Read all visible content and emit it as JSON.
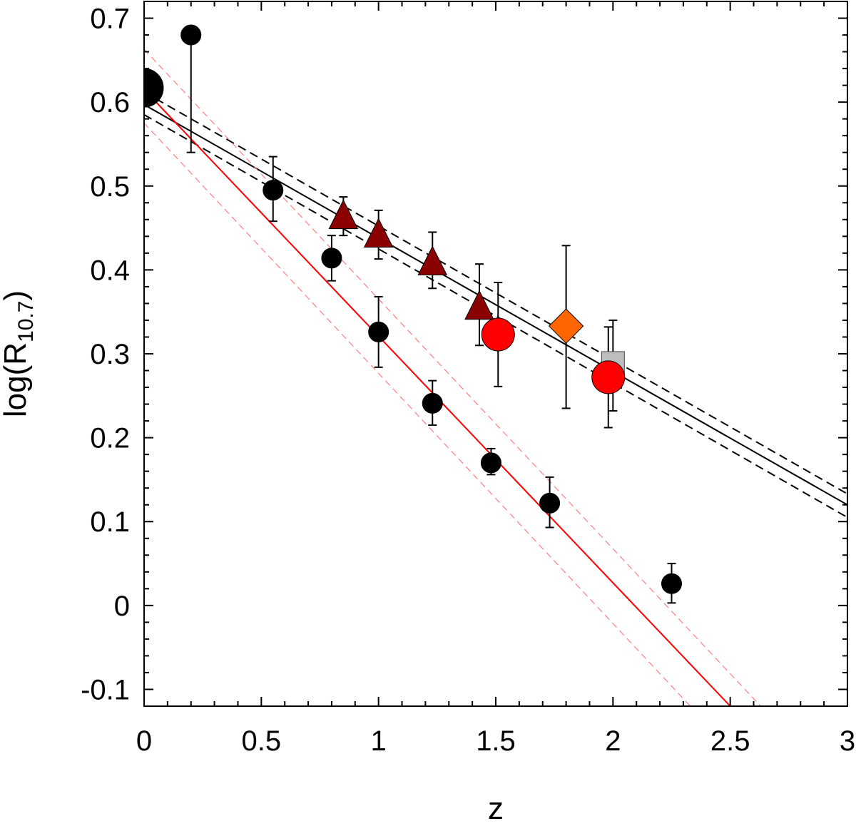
{
  "chart_data": {
    "type": "scatter",
    "xlabel": "z",
    "ylabel_main": "log(R",
    "ylabel_sub": "10.7",
    "ylabel_close": ")",
    "xlim": [
      0,
      3
    ],
    "ylim": [
      -0.12,
      0.72
    ],
    "x_ticks": [
      {
        "value": 0,
        "label": "0"
      },
      {
        "value": 0.5,
        "label": "0.5"
      },
      {
        "value": 1,
        "label": "1"
      },
      {
        "value": 1.5,
        "label": "1.5"
      },
      {
        "value": 2,
        "label": "2"
      },
      {
        "value": 2.5,
        "label": "2.5"
      },
      {
        "value": 3,
        "label": "3"
      }
    ],
    "y_ticks": [
      {
        "value": -0.1,
        "label": "-0.1"
      },
      {
        "value": 0,
        "label": "0"
      },
      {
        "value": 0.1,
        "label": "0.1"
      },
      {
        "value": 0.2,
        "label": "0.2"
      },
      {
        "value": 0.3,
        "label": "0.3"
      },
      {
        "value": 0.4,
        "label": "0.4"
      },
      {
        "value": 0.5,
        "label": "0.5"
      },
      {
        "value": 0.6,
        "label": "0.6"
      },
      {
        "value": 0.7,
        "label": "0.7"
      }
    ],
    "grid": false,
    "lines": [
      {
        "style": "solid",
        "color": "#000000",
        "x": [
          0,
          3
        ],
        "y": [
          0.597,
          0.12
        ]
      },
      {
        "style": "dashed",
        "color": "#000000",
        "x": [
          0,
          3
        ],
        "y": [
          0.612,
          0.133
        ]
      },
      {
        "style": "dashed",
        "color": "#000000",
        "x": [
          0,
          3
        ],
        "y": [
          0.585,
          0.105
        ]
      },
      {
        "style": "solid",
        "color": "#ff0000",
        "x": [
          0,
          2.5
        ],
        "y": [
          0.615,
          -0.12
        ]
      },
      {
        "style": "dashed-thin",
        "color": "#ff8080",
        "x": [
          0,
          2.63
        ],
        "y": [
          0.663,
          -0.12
        ]
      },
      {
        "style": "dashed-thin",
        "color": "#ff8080",
        "x": [
          0,
          2.33
        ],
        "y": [
          0.575,
          -0.12
        ]
      }
    ],
    "series": [
      {
        "marker": "circle",
        "color": "#000000",
        "points": [
          {
            "x": 0.2,
            "y": 0.68,
            "err_up": 0.0,
            "err_down": 0.14
          },
          {
            "x": 0.55,
            "y": 0.495,
            "err_up": 0.04,
            "err_down": 0.037
          },
          {
            "x": 0.8,
            "y": 0.414,
            "err_up": 0.027,
            "err_down": 0.027
          },
          {
            "x": 1.0,
            "y": 0.326,
            "err_up": 0.042,
            "err_down": 0.042
          },
          {
            "x": 1.23,
            "y": 0.241,
            "err_up": 0.027,
            "err_down": 0.026
          },
          {
            "x": 1.48,
            "y": 0.17,
            "err_up": 0.017,
            "err_down": 0.014
          },
          {
            "x": 1.73,
            "y": 0.122,
            "err_up": 0.031,
            "err_down": 0.029
          },
          {
            "x": 2.25,
            "y": 0.026,
            "err_up": 0.024,
            "err_down": 0.023
          }
        ]
      },
      {
        "marker": "circle-large",
        "color": "#000000",
        "points": [
          {
            "x": 0.0,
            "y": 0.617,
            "err_up": 0.0,
            "err_down": 0.0
          }
        ]
      },
      {
        "marker": "triangle",
        "color": "#8b0000",
        "points": [
          {
            "x": 0.85,
            "y": 0.462,
            "err_up": 0.025,
            "err_down": 0.021
          },
          {
            "x": 1.0,
            "y": 0.44,
            "err_up": 0.031,
            "err_down": 0.027
          },
          {
            "x": 1.23,
            "y": 0.407,
            "err_up": 0.038,
            "err_down": 0.029
          },
          {
            "x": 1.43,
            "y": 0.354,
            "err_up": 0.053,
            "err_down": 0.044
          }
        ]
      },
      {
        "marker": "circle-large",
        "color": "#ff0000",
        "points": [
          {
            "x": 1.51,
            "y": 0.323,
            "err_up": 0.062,
            "err_down": 0.062
          },
          {
            "x": 1.98,
            "y": 0.272,
            "err_up": 0.06,
            "err_down": 0.06
          }
        ]
      },
      {
        "marker": "diamond",
        "color": "#ff6600",
        "points": [
          {
            "x": 1.8,
            "y": 0.333,
            "err_up": 0.096,
            "err_down": 0.098
          }
        ]
      },
      {
        "marker": "square",
        "color": "#bdbdbd",
        "points": [
          {
            "x": 2.0,
            "y": 0.289,
            "err_up": 0.051,
            "err_down": 0.057
          }
        ]
      }
    ]
  }
}
